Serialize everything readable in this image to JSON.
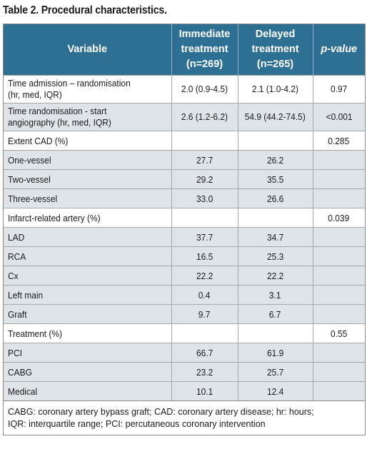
{
  "title": "Table 2. Procedural characteristics.",
  "headers": {
    "variable": "Variable",
    "immediate": [
      "Immediate",
      "treatment",
      "(n=269)"
    ],
    "delayed": [
      "Delayed",
      "treatment",
      "(n=265)"
    ],
    "pvalue": "p-value"
  },
  "rows": [
    {
      "label": [
        "Time admission – randomisation",
        "(hr, med, IQR)"
      ],
      "immediate": "2.0 (0.9-4.5)",
      "delayed": "2.1 (1.0-4.2)",
      "p": "0.97",
      "shade": false
    },
    {
      "label": [
        "Time randomisation - start",
        "angiography (hr, med, IQR)"
      ],
      "immediate": "2.6 (1.2-6.2)",
      "delayed": "54.9 (44.2-74.5)",
      "p": "<0.001",
      "shade": true
    },
    {
      "label": [
        "Extent CAD (%)"
      ],
      "immediate": "",
      "delayed": "",
      "p": "0.285",
      "shade": false
    },
    {
      "label": [
        "One-vessel"
      ],
      "immediate": "27.7",
      "delayed": "26.2",
      "p": "",
      "shade": true
    },
    {
      "label": [
        "Two-vessel"
      ],
      "immediate": "29.2",
      "delayed": "35.5",
      "p": "",
      "shade": true
    },
    {
      "label": [
        "Three-vessel"
      ],
      "immediate": "33.0",
      "delayed": "26.6",
      "p": "",
      "shade": true
    },
    {
      "label": [
        "Infarct-related artery (%)"
      ],
      "immediate": "",
      "delayed": "",
      "p": "0.039",
      "shade": false
    },
    {
      "label": [
        "LAD"
      ],
      "immediate": "37.7",
      "delayed": "34.7",
      "p": "",
      "shade": true
    },
    {
      "label": [
        "RCA"
      ],
      "immediate": "16.5",
      "delayed": "25.3",
      "p": "",
      "shade": true
    },
    {
      "label": [
        "Cx"
      ],
      "immediate": "22.2",
      "delayed": "22.2",
      "p": "",
      "shade": true
    },
    {
      "label": [
        "Left main"
      ],
      "immediate": "0.4",
      "delayed": "3.1",
      "p": "",
      "shade": true
    },
    {
      "label": [
        "Graft"
      ],
      "immediate": "9.7",
      "delayed": "6.7",
      "p": "",
      "shade": true
    },
    {
      "label": [
        "Treatment (%)"
      ],
      "immediate": "",
      "delayed": "",
      "p": "0.55",
      "shade": false
    },
    {
      "label": [
        "PCI"
      ],
      "immediate": "66.7",
      "delayed": "61.9",
      "p": "",
      "shade": true
    },
    {
      "label": [
        "CABG"
      ],
      "immediate": "23.2",
      "delayed": "25.7",
      "p": "",
      "shade": true
    },
    {
      "label": [
        "Medical"
      ],
      "immediate": "10.1",
      "delayed": "12.4",
      "p": "",
      "shade": true
    }
  ],
  "footnote": [
    "CABG: coronary artery bypass graft; CAD: coronary artery disease; hr: hours;",
    "IQR: interquartile range; PCI: percutaneous coronary intervention"
  ],
  "colors": {
    "header_bg": "#2e6f94",
    "shaded_row": "#dfe4e9"
  }
}
